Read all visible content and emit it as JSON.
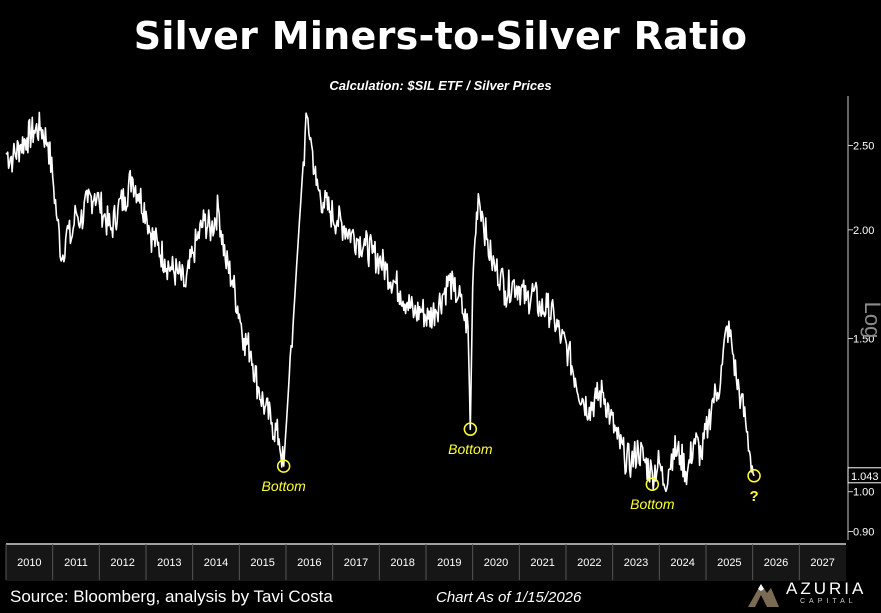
{
  "title": "Silver Miners-to-Silver Ratio",
  "subtitle": "Calculation: $SIL ETF / Silver Prices",
  "source": "Source: Bloomberg, analysis by Tavi Costa",
  "chart_as_of": "Chart As of 1/15/2026",
  "logo": {
    "name": "AZURIA",
    "sub": "CAPITAL",
    "icon": "mountain-logo-icon"
  },
  "colors": {
    "background": "#000000",
    "line": "#ffffff",
    "annotation": "#ffff33"
  },
  "chart_data": {
    "type": "line",
    "title": "Silver Miners-to-Silver Ratio",
    "yscale": "log",
    "ylabel": "Log",
    "ylim": [
      0.88,
      2.85
    ],
    "xlim": [
      2010.0,
      2028.0
    ],
    "x_tick_labels": [
      "2010",
      "2011",
      "2012",
      "2013",
      "2014",
      "2015",
      "2016",
      "2017",
      "2018",
      "2019",
      "2020",
      "2021",
      "2022",
      "2023",
      "2024",
      "2025",
      "2026",
      "2027"
    ],
    "y_ticks": [
      0.9,
      1.0,
      1.5,
      2.0,
      2.5
    ],
    "y_tick_labels": [
      "0.90",
      "1.00",
      "1.50",
      "2.00",
      "2.50"
    ],
    "last_value": 1.043,
    "last_value_label": "1.043",
    "series": [
      {
        "name": "SIL / Silver",
        "x": [
          2010.0,
          2010.15,
          2010.3,
          2010.45,
          2010.6,
          2010.75,
          2010.9,
          2011.0,
          2011.1,
          2011.2,
          2011.3,
          2011.4,
          2011.5,
          2011.6,
          2011.75,
          2011.9,
          2012.0,
          2012.1,
          2012.25,
          2012.4,
          2012.55,
          2012.7,
          2012.85,
          2013.0,
          2013.1,
          2013.25,
          2013.4,
          2013.55,
          2013.7,
          2013.85,
          2014.0,
          2014.1,
          2014.25,
          2014.4,
          2014.55,
          2014.7,
          2014.85,
          2015.0,
          2015.1,
          2015.25,
          2015.4,
          2015.55,
          2015.7,
          2015.85,
          2015.95,
          2016.05,
          2016.15,
          2016.25,
          2016.35,
          2016.45,
          2016.55,
          2016.65,
          2016.8,
          2016.95,
          2017.1,
          2017.25,
          2017.4,
          2017.55,
          2017.7,
          2017.85,
          2018.0,
          2018.15,
          2018.3,
          2018.45,
          2018.6,
          2018.75,
          2018.9,
          2019.05,
          2019.2,
          2019.35,
          2019.5,
          2019.6,
          2019.7,
          2019.8,
          2019.9,
          2019.95,
          2020.0,
          2020.05,
          2020.12,
          2020.2,
          2020.3,
          2020.4,
          2020.5,
          2020.6,
          2020.7,
          2020.85,
          2021.0,
          2021.15,
          2021.3,
          2021.45,
          2021.6,
          2021.75,
          2021.9,
          2022.05,
          2022.2,
          2022.35,
          2022.5,
          2022.65,
          2022.8,
          2022.95,
          2023.1,
          2023.25,
          2023.4,
          2023.55,
          2023.7,
          2023.85,
          2024.0,
          2024.1,
          2024.2,
          2024.3,
          2024.45,
          2024.6,
          2024.75,
          2024.9,
          2025.05,
          2025.15,
          2025.25,
          2025.35,
          2025.45,
          2025.55,
          2025.65,
          2025.75,
          2025.85,
          2025.95,
          2026.03
        ],
        "values": [
          2.45,
          2.42,
          2.5,
          2.55,
          2.6,
          2.62,
          2.52,
          2.3,
          2.05,
          1.85,
          2.0,
          1.95,
          2.1,
          2.05,
          2.15,
          2.2,
          2.15,
          2.08,
          2.0,
          2.12,
          2.18,
          2.3,
          2.2,
          2.1,
          1.98,
          1.92,
          1.85,
          1.8,
          1.78,
          1.72,
          1.88,
          1.95,
          2.05,
          2.0,
          2.12,
          1.85,
          1.75,
          1.6,
          1.5,
          1.45,
          1.32,
          1.25,
          1.2,
          1.15,
          1.07,
          1.3,
          1.55,
          1.9,
          2.3,
          2.7,
          2.5,
          2.25,
          2.15,
          2.1,
          2.05,
          2.02,
          1.98,
          1.95,
          1.92,
          1.88,
          1.85,
          1.8,
          1.75,
          1.7,
          1.65,
          1.6,
          1.62,
          1.58,
          1.62,
          1.68,
          1.75,
          1.7,
          1.68,
          1.6,
          1.55,
          1.18,
          1.72,
          1.95,
          2.2,
          2.1,
          1.95,
          1.85,
          1.8,
          1.78,
          1.7,
          1.74,
          1.72,
          1.66,
          1.7,
          1.62,
          1.63,
          1.58,
          1.5,
          1.45,
          1.35,
          1.28,
          1.25,
          1.28,
          1.3,
          1.22,
          1.15,
          1.1,
          1.08,
          1.12,
          1.08,
          1.05,
          1.08,
          1.02,
          1.06,
          1.12,
          1.1,
          1.05,
          1.15,
          1.1,
          1.2,
          1.28,
          1.3,
          1.4,
          1.55,
          1.48,
          1.35,
          1.28,
          1.2,
          1.1,
          1.043
        ]
      }
    ],
    "annotations": [
      {
        "label": "Bottom",
        "x": 2015.95,
        "y": 1.07
      },
      {
        "label": "Bottom",
        "x": 2019.95,
        "y": 1.18
      },
      {
        "label": "Bottom",
        "x": 2023.85,
        "y": 1.02
      },
      {
        "label": "?",
        "x": 2026.03,
        "y": 1.043
      }
    ]
  }
}
